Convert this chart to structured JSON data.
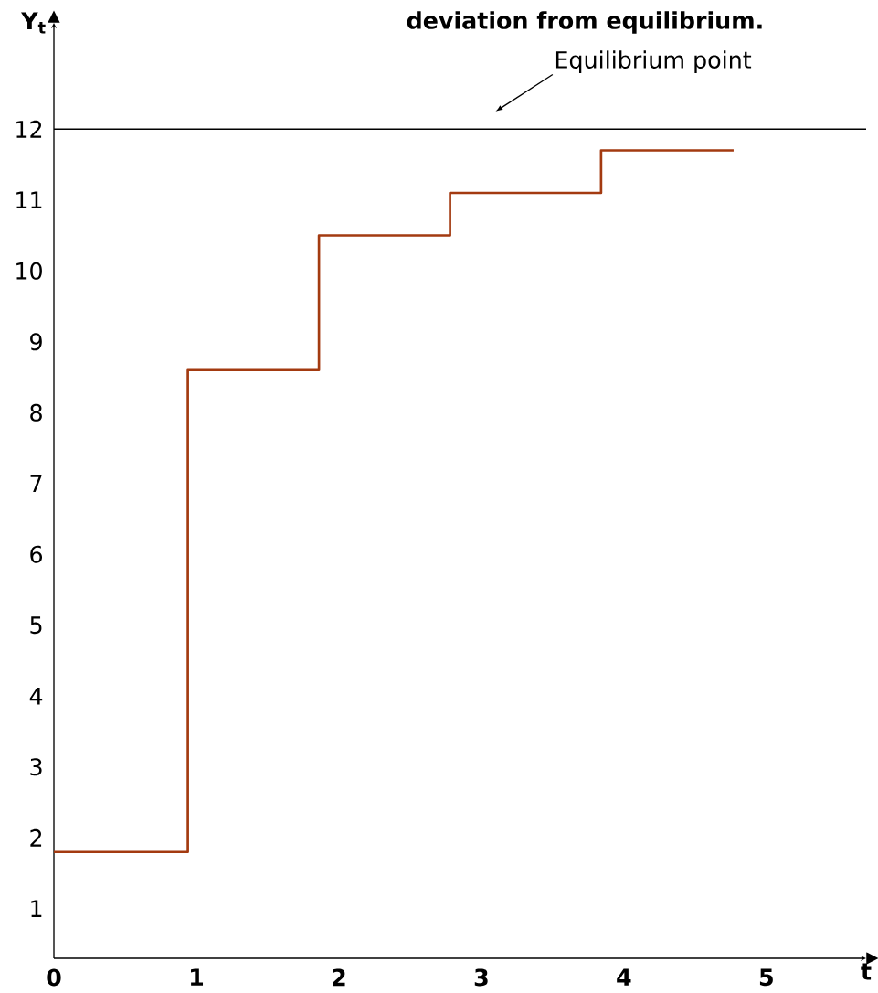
{
  "chart_data": {
    "type": "step",
    "title": "deviation from equilibrium.",
    "xlabel": "t",
    "ylabel": "Y$_{t}$",
    "x": [
      0,
      0.94,
      1.86,
      2.78,
      3.84,
      4.77
    ],
    "series": [
      {
        "color": "#a33a10",
        "values": [
          1.8,
          8.6,
          10.5,
          11.1,
          11.7,
          11.7
        ]
      }
    ],
    "xlim": [
      0,
      5.7
    ],
    "ylim": [
      0.3,
      13.5
    ],
    "xticks": [
      0,
      1,
      2,
      3,
      4,
      5
    ],
    "yticks": [
      1,
      2,
      3,
      4,
      5,
      6,
      7,
      8,
      9,
      10,
      11,
      12
    ],
    "ref_lines": [
      {
        "axis": "y",
        "value": 12,
        "label": "Equilibrium point",
        "color": "#000000"
      }
    ],
    "grid": false
  }
}
